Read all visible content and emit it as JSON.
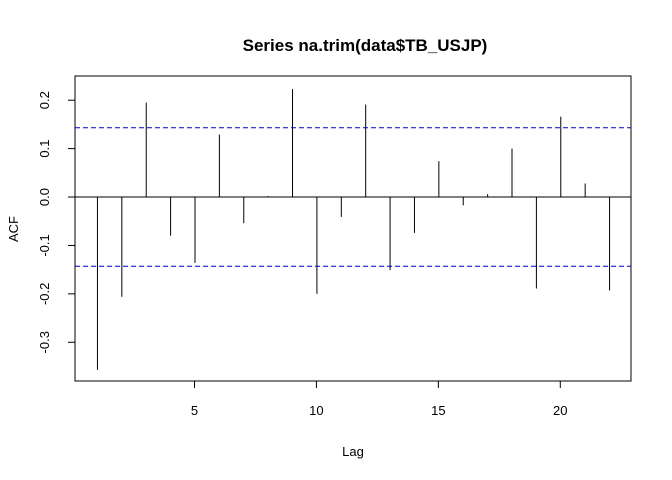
{
  "chart_data": {
    "type": "bar",
    "title": "Series na.trim(data$TB_USJP)",
    "xlabel": "Lag",
    "ylabel": "ACF",
    "xlim": [
      0.1,
      22.9
    ],
    "ylim": [
      -0.38,
      0.25
    ],
    "x_ticks": [
      "5",
      "10",
      "15",
      "20"
    ],
    "y_ticks": [
      "-0.3",
      "-0.2",
      "-0.1",
      "0.0",
      "0.1",
      "0.2"
    ],
    "confidence_bound": 0.143,
    "bound_color": "#0000cc",
    "lags": [
      1,
      2,
      3,
      4,
      5,
      6,
      7,
      8,
      9,
      10,
      11,
      12,
      13,
      14,
      15,
      16,
      17,
      18,
      19,
      20,
      21,
      22
    ],
    "values": [
      -0.357,
      -0.206,
      0.195,
      -0.08,
      -0.136,
      0.129,
      -0.054,
      0.002,
      0.223,
      -0.2,
      -0.041,
      0.191,
      -0.151,
      -0.074,
      0.074,
      -0.017,
      0.006,
      0.1,
      -0.189,
      0.166,
      0.028,
      -0.193
    ]
  }
}
